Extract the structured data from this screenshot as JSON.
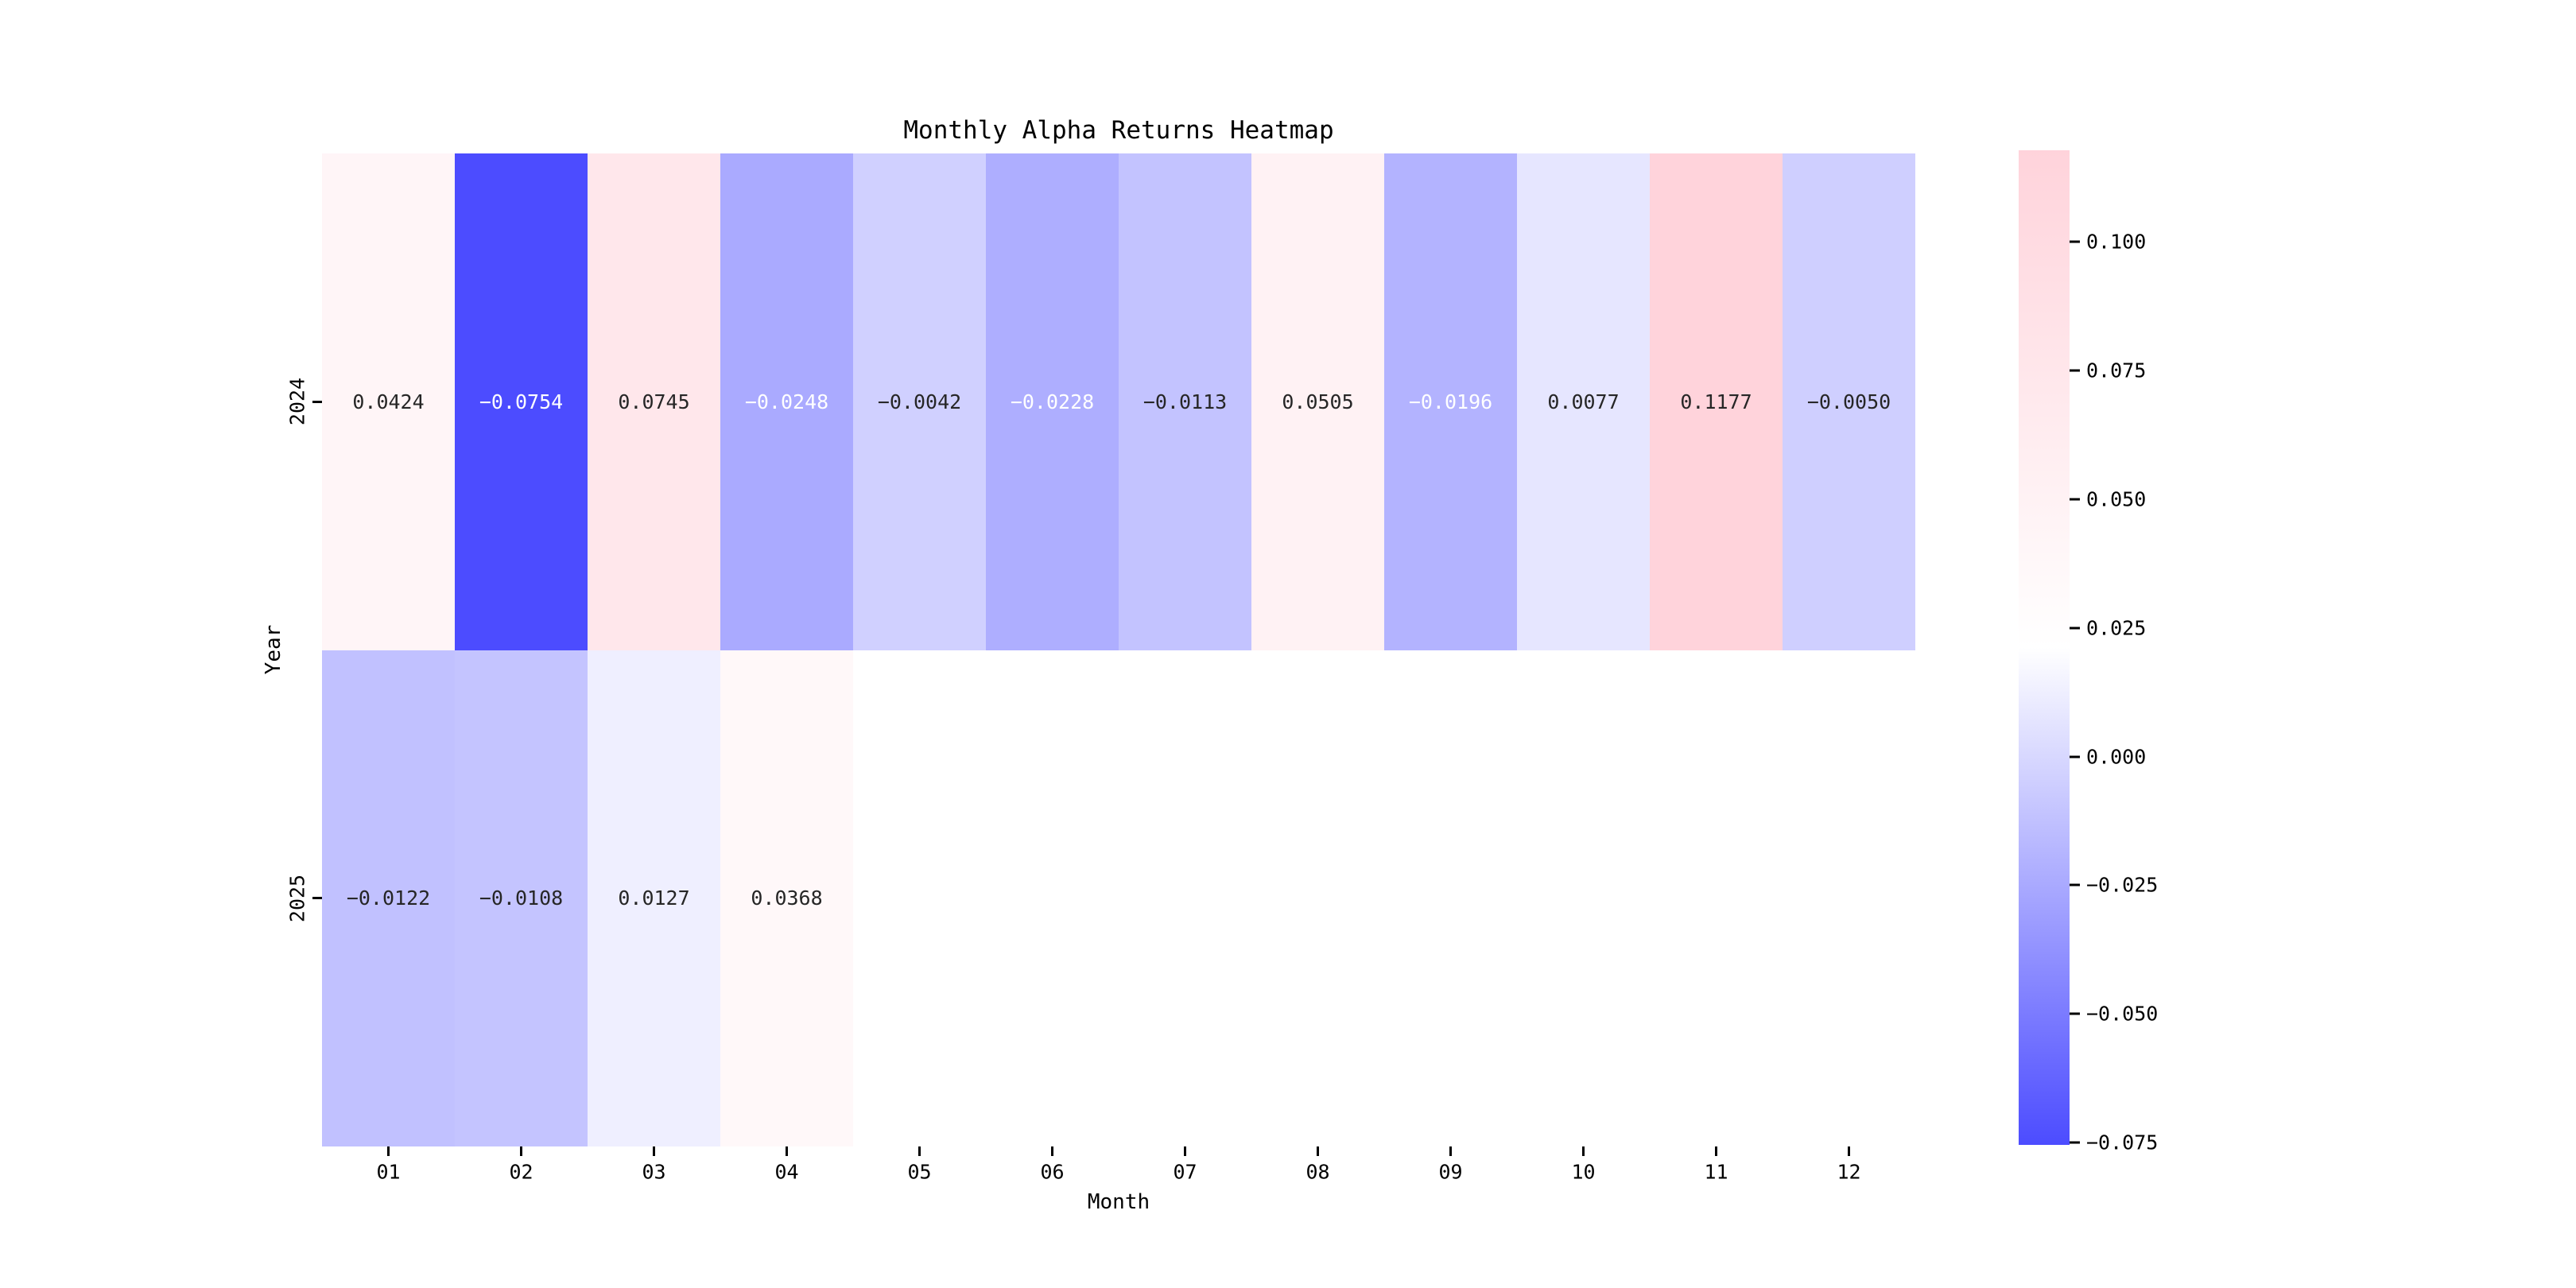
{
  "title": "Monthly Alpha Returns Heatmap",
  "chart_data": {
    "type": "heatmap",
    "title": "Monthly Alpha Returns Heatmap",
    "xlabel": "Month",
    "ylabel": "Year",
    "x_categories": [
      "01",
      "02",
      "03",
      "04",
      "05",
      "06",
      "07",
      "08",
      "09",
      "10",
      "11",
      "12"
    ],
    "y_categories": [
      "2024",
      "2025"
    ],
    "series": [
      {
        "name": "2024",
        "values": [
          0.0424,
          -0.0754,
          0.0745,
          -0.0248,
          -0.0042,
          -0.0228,
          -0.0113,
          0.0505,
          -0.0196,
          0.0077,
          0.1177,
          -0.005
        ],
        "labels": [
          "0.0424",
          "−0.0754",
          "0.0745",
          "−0.0248",
          "−0.0042",
          "−0.0228",
          "−0.0113",
          "0.0505",
          "−0.0196",
          "0.0077",
          "0.1177",
          "−0.0050"
        ],
        "cell_colors": [
          "#FFF5F7",
          "#4C4CFF",
          "#FFE7EB",
          "#AAAAFF",
          "#D0D0FF",
          "#AEAEFF",
          "#C3C3FF",
          "#FFF2F4",
          "#B3B3FF",
          "#E6E6FF",
          "#FFD3DB",
          "#CFCFFF"
        ],
        "text_colors": [
          "#262626",
          "#FFFFFF",
          "#262626",
          "#FFFFFF",
          "#262626",
          "#FFFFFF",
          "#262626",
          "#262626",
          "#FFFFFF",
          "#262626",
          "#262626",
          "#262626"
        ]
      },
      {
        "name": "2025",
        "values": [
          -0.0122,
          -0.0108,
          0.0127,
          0.0368,
          null,
          null,
          null,
          null,
          null,
          null,
          null,
          null
        ],
        "labels": [
          "−0.0122",
          "−0.0108",
          "0.0127",
          "0.0368",
          "",
          "",
          "",
          "",
          "",
          "",
          "",
          ""
        ],
        "cell_colors": [
          "#C1C1FF",
          "#C4C4FF",
          "#EFEFFF",
          "#FFF8F9",
          null,
          null,
          null,
          null,
          null,
          null,
          null,
          null
        ],
        "text_colors": [
          "#262626",
          "#262626",
          "#262626",
          "#262626",
          null,
          null,
          null,
          null,
          null,
          null,
          null,
          null
        ]
      }
    ],
    "colorbar": {
      "vmin": -0.0754,
      "vmax": 0.1177,
      "tick_labels": [
        "0.100",
        "0.075",
        "0.050",
        "0.025",
        "0.000",
        "−0.025",
        "−0.050",
        "−0.075"
      ],
      "tick_values": [
        0.1,
        0.075,
        0.05,
        0.025,
        0.0,
        -0.025,
        -0.05,
        -0.075
      ],
      "gradient_top_color": "#FFD3DB",
      "gradient_mid_color": "#FFFFFF",
      "gradient_bottom_color": "#4C4CFF",
      "position": "right"
    },
    "grid": false,
    "background_color": "#FFFFFF",
    "empty_cell_color": "#FFFFFF"
  }
}
